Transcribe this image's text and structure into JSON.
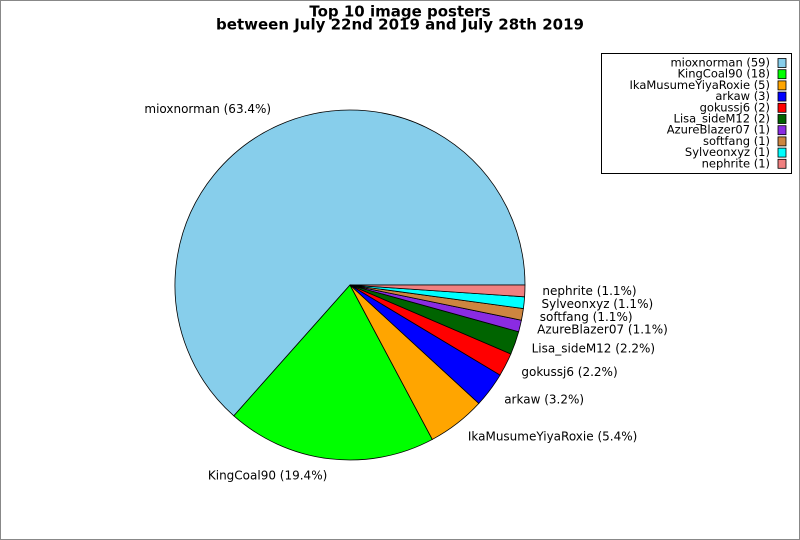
{
  "chart_data": {
    "type": "pie",
    "title": "Top 10 image posters",
    "subtitle": "between July 22nd 2019 and July 28th 2019",
    "categories": [
      "mioxnorman",
      "KingCoal90",
      "IkaMusumeYiyaRoxie",
      "arkaw",
      "gokussj6",
      "Lisa_sideM12",
      "AzureBlazer07",
      "softfang",
      "Sylveonxyz",
      "nephrite"
    ],
    "values": [
      59,
      18,
      5,
      3,
      2,
      2,
      1,
      1,
      1,
      1
    ],
    "slice_labels": [
      "mioxnorman (63.4%)",
      "KingCoal90 (19.4%)",
      "IkaMusumeYiyaRoxie (5.4%)",
      "arkaw (3.2%)",
      "gokussj6 (2.2%)",
      "Lisa_sideM12 (2.2%)",
      "AzureBlazer07 (1.1%)",
      "softfang (1.1%)",
      "Sylveonxyz (1.1%)",
      "nephrite (1.1%)"
    ],
    "legend_labels": [
      "mioxnorman (59)",
      "KingCoal90 (18)",
      "IkaMusumeYiyaRoxie (5)",
      "arkaw (3)",
      "gokussj6 (2)",
      "Lisa_sideM12 (2)",
      "AzureBlazer07 (1)",
      "softfang (1)",
      "Sylveonxyz (1)",
      "nephrite (1)"
    ],
    "colors": [
      "#87ceeb",
      "#00ff00",
      "#ffa500",
      "#0000ff",
      "#ff0000",
      "#006400",
      "#8a2be2",
      "#cd853f",
      "#00ffff",
      "#f08080"
    ],
    "legend_position": "upper right"
  }
}
